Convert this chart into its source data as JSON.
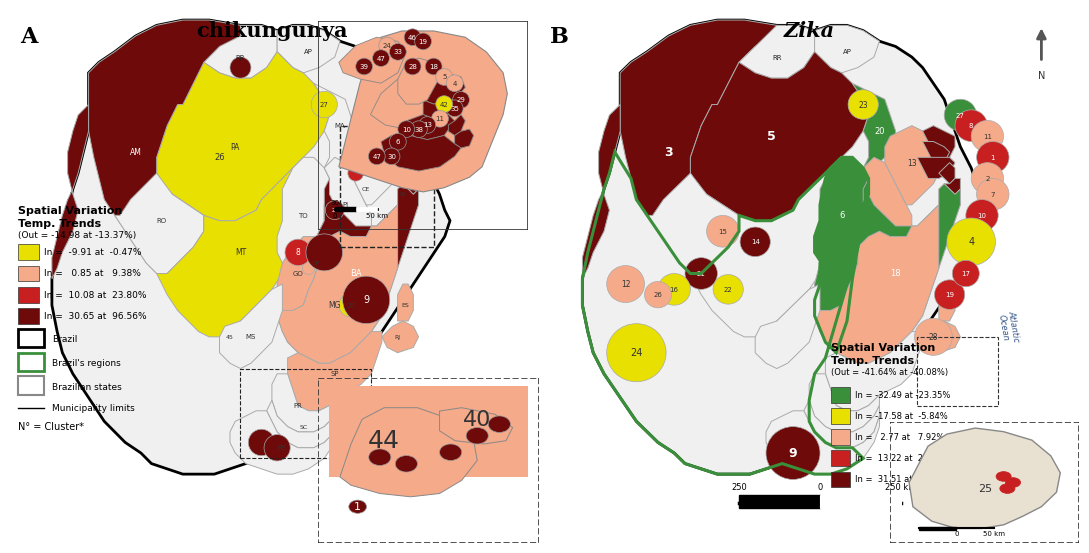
{
  "title_left": "chikungunya",
  "title_right": "Zika",
  "label_A": "A",
  "label_B": "B",
  "bg_color": "#ffffff",
  "legend_left": {
    "title_line1": "Spatial Variation",
    "title_line2": "Temp. Trends",
    "out_label": "(Out = -14.98 at -13.37%)",
    "entries": [
      {
        "label": "In =  -9.91 at  -0.47%",
        "color": "#e8e000"
      },
      {
        "label": "In =   0.85 at   9.38%",
        "color": "#f5aa8a"
      },
      {
        "label": "In =  10.08 at  23.80%",
        "color": "#c82020"
      },
      {
        "label": "In =  30.65 at  96.56%",
        "color": "#6e0a0a"
      }
    ]
  },
  "legend_right": {
    "title_line1": "Spatial Variation",
    "title_line2": "Temp. Trends",
    "out_label": "(Out = -41.64% at -40.08%)",
    "entries": [
      {
        "label": "In = -32.49 at -23.35%",
        "color": "#3a8f3a"
      },
      {
        "label": "In = -17.58 at  -5.84%",
        "color": "#e8e000"
      },
      {
        "label": "In =   2.77 at   7.92%",
        "color": "#f5aa8a"
      },
      {
        "label": "In =  13.22 at  20.15%",
        "color": "#c82020"
      },
      {
        "label": "In =  31.51 at  53.03%",
        "color": "#6e0a0a"
      }
    ]
  },
  "colors": {
    "yellow": "#e8e000",
    "light_pink": "#f5aa8a",
    "red": "#c82020",
    "dark_red": "#6e0a0a",
    "dark_green": "#3a8f3a",
    "white": "#ffffff",
    "light_gray": "#f0f0f0",
    "state_border": "#aaaaaa",
    "brazil_border": "#000000",
    "region_border": "#3a8f3a"
  },
  "atlantic_ocean": "Atlantic\nOcean"
}
